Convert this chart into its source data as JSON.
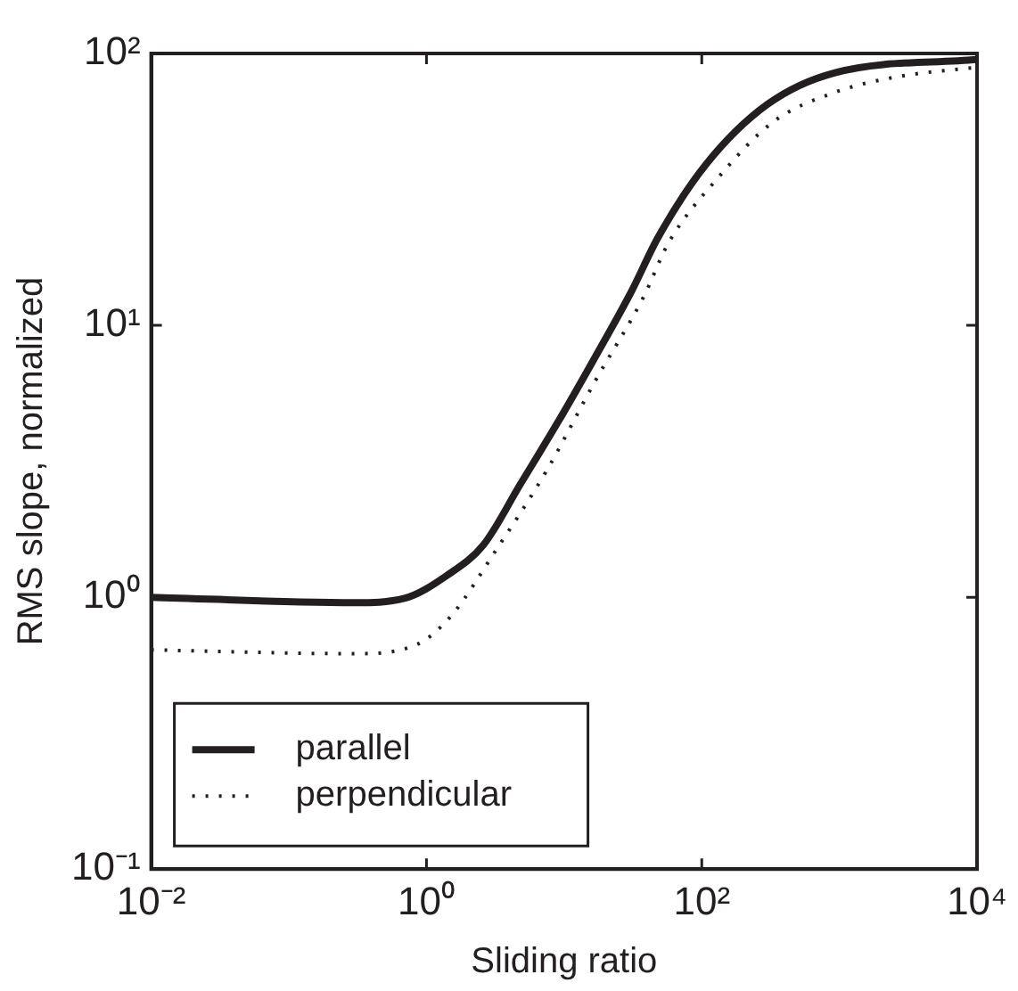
{
  "chart_data": {
    "type": "line",
    "xlabel": "Sliding ratio",
    "ylabel": "RMS slope, normalized",
    "log": "xy",
    "grid": false,
    "legend": "bottom left",
    "marker": "none",
    "xlim": [
      0.01,
      10000
    ],
    "xticks": [
      {
        "value": 0.01,
        "label": "10⁻²"
      },
      {
        "value": 1,
        "label": "10⁰"
      },
      {
        "value": 100,
        "label": "10²"
      },
      {
        "value": 10000,
        "label": "10⁴"
      }
    ],
    "ylim": [
      0.1,
      100
    ],
    "yticks": [
      {
        "value": 0.1,
        "label": "10⁻¹"
      },
      {
        "value": 1,
        "label": "10⁰"
      },
      {
        "value": 10,
        "label": "10¹"
      },
      {
        "value": 100,
        "label": "10²"
      }
    ],
    "series": [
      {
        "name": "parallel",
        "color": "#231f20",
        "line_style": "solid",
        "x": [
          0.01,
          0.3,
          0.69,
          1.4,
          2.6,
          4.8,
          9,
          16.7,
          31,
          48,
          107,
          300,
          930,
          10000
        ],
        "values": [
          1.0,
          0.955,
          0.99,
          1.2,
          1.56,
          2.6,
          4.4,
          7.6,
          13.4,
          21,
          39,
          65,
          85,
          95
        ]
      },
      {
        "name": "perpendicular",
        "color": "#231f20",
        "line_style": "dotted",
        "x": [
          0.01,
          0.3,
          0.85,
          1.5,
          3.2,
          7.4,
          16.7,
          38,
          57,
          132,
          330,
          930,
          2600,
          10000
        ],
        "values": [
          0.64,
          0.62,
          0.67,
          0.85,
          1.49,
          2.9,
          6.2,
          12.8,
          20,
          35,
          56,
          72,
          82,
          89
        ]
      }
    ]
  }
}
